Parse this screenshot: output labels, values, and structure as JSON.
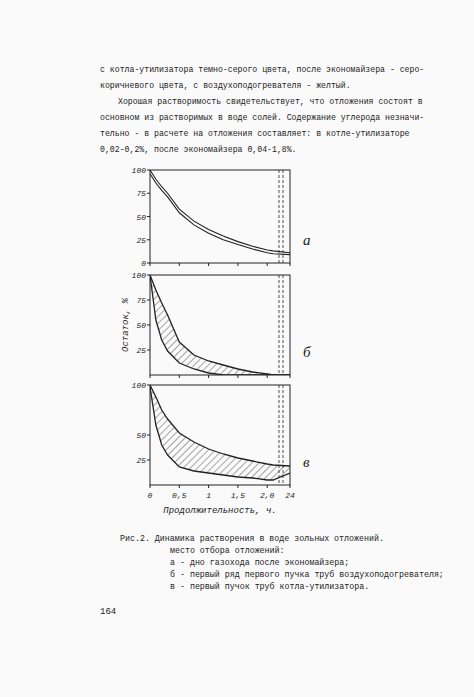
{
  "paragraphs": [
    [
      "с котла-утилизатора темно-серого цвета, после экономайзера - серо-",
      "коричневого цвета, с воздухоподогревателя - желтый."
    ],
    [
      "Хорошая растворимость свидетельствует, что отложения состоят в",
      "основном из растворимых в воде солей. Содержание углерода незначи-",
      "тельно - в расчете на отложения составляет: в котле-утилизаторе",
      "0,02-0,2%, после экономайзера 0,04-1,8%."
    ]
  ],
  "chart_data": [
    {
      "type": "line",
      "title": "а",
      "x": [
        0,
        0.1,
        0.2,
        0.3,
        0.5,
        0.75,
        1.0,
        1.25,
        1.5,
        1.75,
        2.0,
        2.1,
        24
      ],
      "series": [
        {
          "color": "#222222",
          "values": [
            100,
            90,
            82,
            75,
            58,
            45,
            36,
            29,
            23,
            18,
            14,
            13,
            11
          ]
        },
        {
          "color": "#222222",
          "values": [
            96,
            86,
            78,
            71,
            54,
            41,
            32,
            25,
            20,
            15,
            11,
            10,
            9
          ]
        }
      ],
      "xlim": [
        0,
        24
      ],
      "xticks": [
        0,
        {
          "value": 0.5,
          "label": "0,5"
        },
        1,
        {
          "value": 1.5,
          "label": "1,5"
        },
        {
          "value": 2.0,
          "label": "2,0"
        },
        24
      ],
      "ylim": [
        0,
        100
      ],
      "yticks": [
        0,
        25,
        50,
        75,
        100
      ],
      "tick_labels": "y"
    },
    {
      "type": "area",
      "title": "б",
      "ylabel": "Остаток, %",
      "x": [
        0,
        0.1,
        0.2,
        0.3,
        0.5,
        0.75,
        1.0,
        1.25,
        1.5,
        1.75,
        2.0,
        2.1,
        24
      ],
      "series": [
        {
          "color": "#222222",
          "values": [
            100,
            85,
            72,
            60,
            33,
            20,
            14,
            10,
            6,
            3,
            1,
            0,
            0
          ]
        },
        {
          "color": "#222222",
          "values": [
            100,
            55,
            35,
            24,
            12,
            6,
            2,
            0,
            0,
            0,
            0,
            0,
            0
          ]
        }
      ],
      "xlim": [
        0,
        24
      ],
      "xticks": [
        0,
        {
          "value": 0.5,
          "label": "0,5"
        },
        1,
        {
          "value": 1.5,
          "label": "1,5"
        },
        {
          "value": 2.0,
          "label": "2,0"
        },
        24
      ],
      "ylim": [
        0,
        100
      ],
      "yticks": [
        25,
        50,
        75,
        100
      ],
      "tick_labels": "y"
    },
    {
      "type": "area",
      "title": "в",
      "xlabel": "Продолжительность, ч.",
      "x": [
        0,
        0.1,
        0.2,
        0.3,
        0.5,
        0.75,
        1.0,
        1.25,
        1.5,
        1.75,
        2.0,
        2.1,
        24
      ],
      "series": [
        {
          "color": "#222222",
          "values": [
            100,
            88,
            75,
            66,
            52,
            43,
            36,
            31,
            27,
            24,
            21,
            20,
            19
          ]
        },
        {
          "color": "#222222",
          "values": [
            98,
            60,
            40,
            30,
            18,
            14,
            12,
            10,
            8,
            7,
            5,
            5,
            12
          ]
        }
      ],
      "xlim": [
        0,
        24
      ],
      "xticks": [
        0,
        {
          "value": 0.5,
          "label": "0,5"
        },
        1,
        {
          "value": 1.5,
          "label": "1,5"
        },
        {
          "value": 2.0,
          "label": "2,0"
        },
        24
      ],
      "ylim": [
        0,
        100
      ],
      "yticks": [
        25,
        50,
        100
      ],
      "tick_labels": true
    }
  ],
  "caption": {
    "title": "Рис.2. Динамика растворения в воде зольных отложений.",
    "lines": [
      "место отбора отложений:",
      "а - дно газохода после экономайзера;",
      "б - первый ряд первого пучка труб воздухоподогревателя;",
      "в - первый пучок труб котла-утилизатора."
    ]
  },
  "page_number": "164"
}
